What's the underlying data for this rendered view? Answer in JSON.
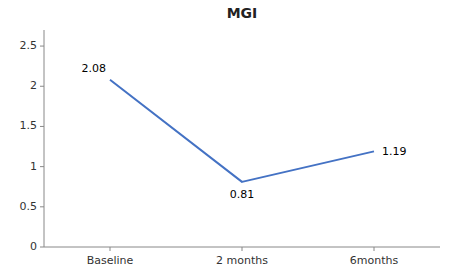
{
  "chart_data": {
    "type": "line",
    "title": "MGI",
    "categories": [
      "Baseline",
      "2 months",
      "6months"
    ],
    "values": [
      2.08,
      0.81,
      1.19
    ],
    "color": "#4472C4",
    "ylim": [
      0,
      2.7
    ],
    "yticks": [
      0,
      0.5,
      1,
      1.5,
      2,
      2.5
    ],
    "grid": false,
    "data_labels": true
  }
}
